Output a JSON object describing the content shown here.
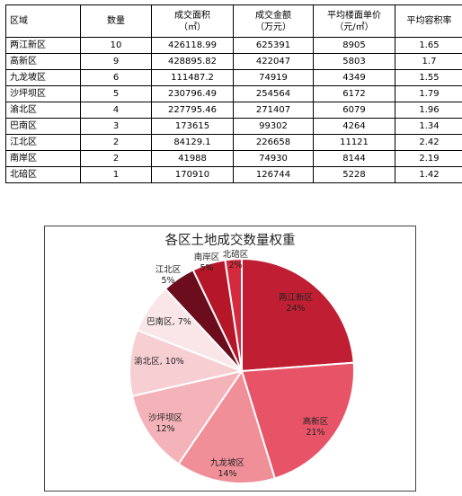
{
  "table": {
    "headers": [
      {
        "line1": "区域",
        "line2": ""
      },
      {
        "line1": "数量",
        "line2": ""
      },
      {
        "line1": "成交面积",
        "line2": "（㎡）"
      },
      {
        "line1": "成交金额",
        "line2": "（万元）"
      },
      {
        "line1": "平均楼面单价",
        "line2": "（元/㎡）"
      },
      {
        "line1": "平均容积率",
        "line2": ""
      }
    ],
    "rows": [
      [
        "两江新区",
        "10",
        "426118.99",
        "625391",
        "8905",
        "1.65"
      ],
      [
        "高新区",
        "9",
        "428895.82",
        "422047",
        "5803",
        "1.7"
      ],
      [
        "九龙坡区",
        "6",
        "111487.2",
        "74919",
        "4349",
        "1.55"
      ],
      [
        "沙坪坝区",
        "5",
        "230796.49",
        "254564",
        "6172",
        "1.79"
      ],
      [
        "渝北区",
        "4",
        "227795.46",
        "271407",
        "6079",
        "1.96"
      ],
      [
        "巴南区",
        "3",
        "173615",
        "99302",
        "4264",
        "1.34"
      ],
      [
        "江北区",
        "2",
        "84129.1",
        "226658",
        "11121",
        "2.42"
      ],
      [
        "南岸区",
        "2",
        "41988",
        "74930",
        "8144",
        "2.19"
      ],
      [
        "北碚区",
        "1",
        "170910",
        "126744",
        "5228",
        "1.42"
      ]
    ]
  },
  "chart_data": {
    "type": "pie",
    "title": "各区土地成交数量权重",
    "categories": [
      "两江新区",
      "高新区",
      "九龙坡区",
      "沙坪坝区",
      "渝北区",
      "巴南区",
      "江北区",
      "南岸区",
      "北碚区"
    ],
    "values": [
      10,
      9,
      6,
      5,
      4,
      3,
      2,
      2,
      1
    ],
    "percent_labels": [
      "24%",
      "21%",
      "14%",
      "12%",
      "10%",
      "7%",
      "5%",
      "5%",
      "2%"
    ],
    "colors": [
      "#c01f33",
      "#e85467",
      "#f08f98",
      "#f3b3b9",
      "#f7cfd3",
      "#fae6e8",
      "#6b0d1c",
      "#b51628",
      "#d52a3d"
    ],
    "start_angle_deg": 0,
    "direction": "clockwise",
    "legend": "none",
    "label_style": [
      "inside",
      "inside",
      "inside",
      "inside",
      "inside",
      "inside",
      "outside",
      "outside",
      "outside"
    ]
  }
}
